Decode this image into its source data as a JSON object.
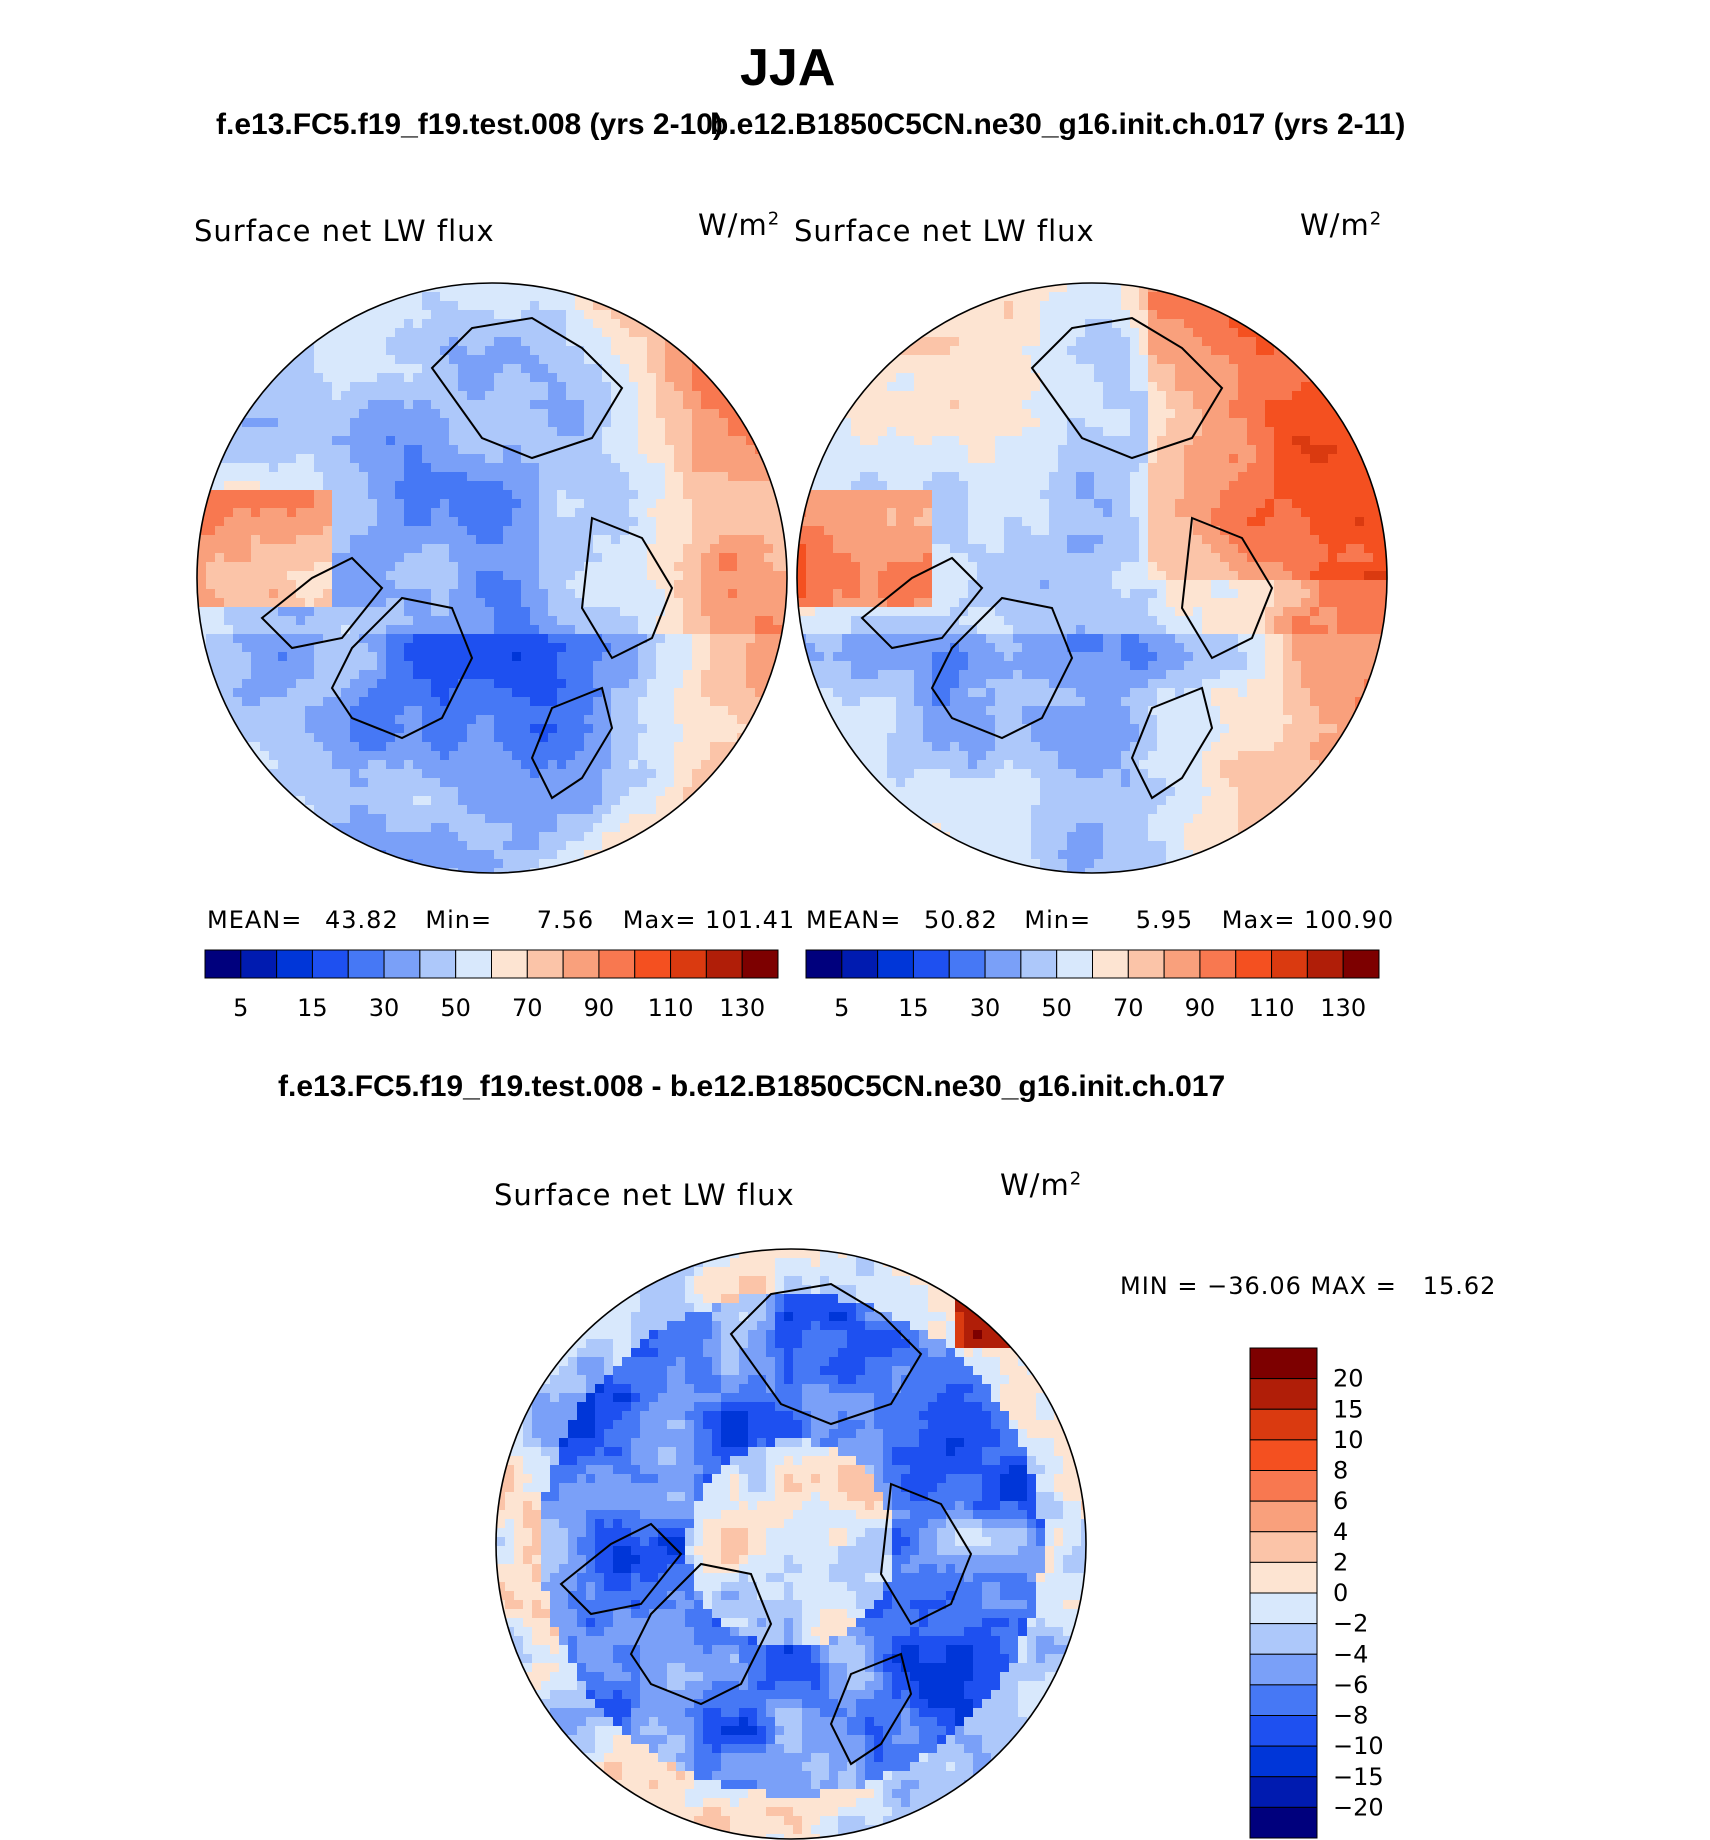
{
  "season": "JJA",
  "chart_data": [
    {
      "type": "heatmap",
      "projection": "north-polar-stereographic",
      "case_title": "f.e13.FC5.f19_f19.test.008 (yrs 2-10)",
      "variable": "Surface net LW flux",
      "units": "W/m",
      "units_exp": "2",
      "stats": {
        "mean_label": "MEAN=",
        "mean": "43.82",
        "min_label": "Min=",
        "min": "7.56",
        "max_label": "Max=",
        "max": "101.41"
      },
      "levels": [
        5,
        10,
        15,
        20,
        30,
        40,
        50,
        60,
        70,
        80,
        90,
        100,
        110,
        120,
        130
      ],
      "tick_labels": [
        "5",
        "15",
        "30",
        "50",
        "70",
        "90",
        "110",
        "130"
      ]
    },
    {
      "type": "heatmap",
      "projection": "north-polar-stereographic",
      "case_title": "b.e12.B1850C5CN.ne30_g16.init.ch.017 (yrs 2-11)",
      "variable": "Surface net LW flux",
      "units": "W/m",
      "units_exp": "2",
      "stats": {
        "mean_label": "MEAN=",
        "mean": "50.82",
        "min_label": "Min=",
        "min": "5.95",
        "max_label": "Max=",
        "max": "100.90"
      },
      "levels": [
        5,
        10,
        15,
        20,
        30,
        40,
        50,
        60,
        70,
        80,
        90,
        100,
        110,
        120,
        130
      ],
      "tick_labels": [
        "5",
        "15",
        "30",
        "50",
        "70",
        "90",
        "110",
        "130"
      ]
    },
    {
      "type": "heatmap",
      "projection": "north-polar-stereographic",
      "diff_title": "f.e13.FC5.f19_f19.test.008 - b.e12.B1850C5CN.ne30_g16.init.ch.017",
      "variable": "Surface net LW flux",
      "units": "W/m",
      "units_exp": "2",
      "stats_text": "MIN = −36.06 MAX =   15.62",
      "levels": [
        -20,
        -15,
        -10,
        -8,
        -6,
        -4,
        -2,
        0,
        2,
        4,
        6,
        8,
        10,
        15,
        20
      ],
      "tick_labels": [
        "20",
        "15",
        "10",
        "8",
        "6",
        "4",
        "2",
        "0",
        "−2",
        "−4",
        "−6",
        "−8",
        "−10",
        "−15",
        "−20"
      ]
    }
  ],
  "palette": [
    "#00007d",
    "#001bb0",
    "#0036d8",
    "#1e50f0",
    "#4678f5",
    "#7aa0f8",
    "#adc8fa",
    "#d8e8fc",
    "#fde4d2",
    "#fbc4a8",
    "#f9a07c",
    "#f87850",
    "#f45020",
    "#da3a10",
    "#b01e08",
    "#7d0000"
  ]
}
